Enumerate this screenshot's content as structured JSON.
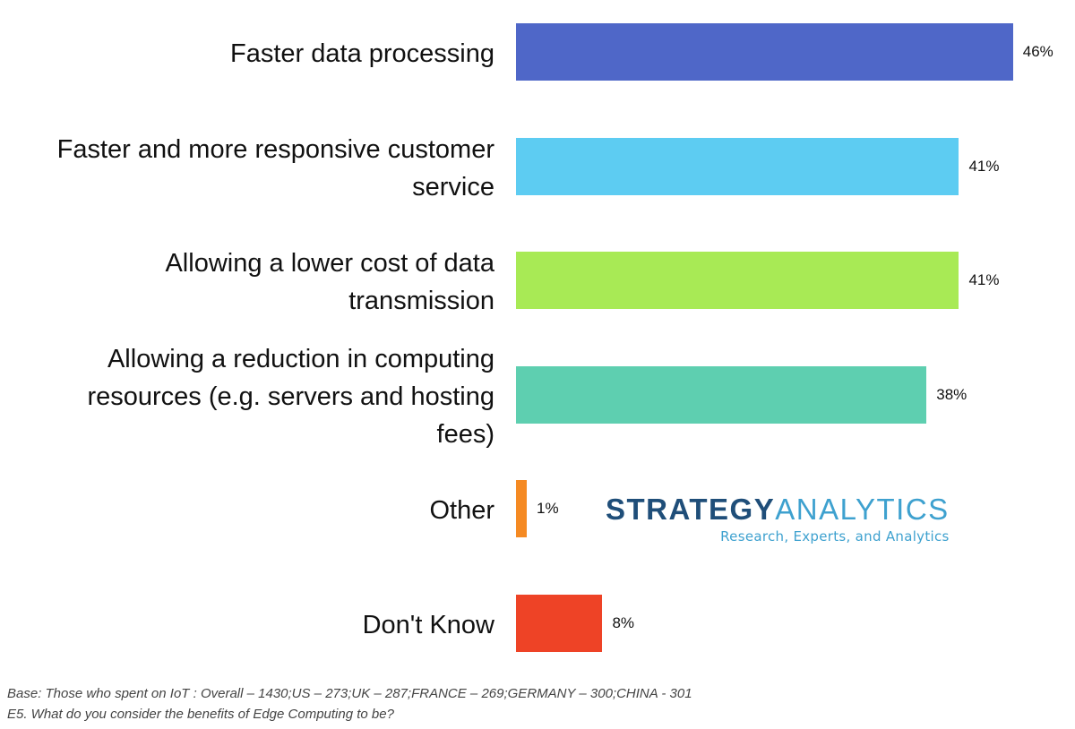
{
  "chart_data": {
    "type": "bar",
    "orientation": "horizontal",
    "categories": [
      "Faster data processing",
      "Faster and more responsive customer\nservice",
      "Allowing a lower cost of data\ntransmission",
      "Allowing a reduction in computing\nresources (e.g. servers and hosting\nfees)",
      "Other",
      "Don't Know"
    ],
    "values": [
      46,
      41,
      41,
      38,
      1,
      8
    ],
    "value_labels": [
      "46%",
      "41%",
      "41%",
      "38%",
      "1%",
      "8%"
    ],
    "colors": [
      "#4F67C8",
      "#5DCCF2",
      "#A8EA55",
      "#5ECFB0",
      "#F58A23",
      "#EE4326"
    ],
    "unit": "%",
    "xlim": [
      0,
      50
    ],
    "grid": false,
    "legend": "none"
  },
  "logo": {
    "brand_part1": "STRATEGY",
    "brand_part2": "ANALYTICS",
    "tagline": "Research, Experts, and Analytics"
  },
  "footnotes": {
    "base": "Base: Those who spent on IoT : Overall – 1430;US – 273;UK – 287;FRANCE – 269;GERMANY – 300;CHINA - 301",
    "question": "E5. What do you consider the benefits of Edge Computing to be?"
  }
}
